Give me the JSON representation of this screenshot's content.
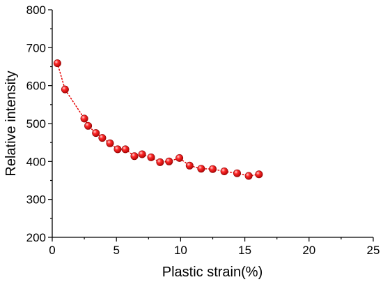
{
  "colors": {
    "marker": "#e60000",
    "marker_edge": "#8b0000",
    "line": "#e60000",
    "axis": "#000000"
  },
  "chart_data": {
    "type": "scatter",
    "title": "",
    "xlabel": "Plastic strain(%)",
    "ylabel": "Relative intensity",
    "xlim": [
      0,
      25
    ],
    "ylim": [
      200,
      800
    ],
    "xticks": [
      0,
      5,
      10,
      15,
      20,
      25
    ],
    "yticks": [
      200,
      300,
      400,
      500,
      600,
      700,
      800
    ],
    "grid": false,
    "legend": "none",
    "series": [
      {
        "style": "markers-with-dotted-line",
        "x": [
          0.4,
          1.0,
          2.5,
          2.8,
          3.4,
          3.9,
          4.5,
          5.1,
          5.7,
          6.4,
          7.0,
          7.7,
          8.4,
          9.1,
          9.9,
          10.7,
          11.6,
          12.5,
          13.4,
          14.4,
          15.3,
          16.1
        ],
        "y": [
          659,
          590,
          513,
          494,
          475,
          462,
          448,
          432,
          432,
          414,
          419,
          411,
          398,
          400,
          409,
          389,
          381,
          380,
          374,
          369,
          362,
          366
        ]
      }
    ]
  }
}
